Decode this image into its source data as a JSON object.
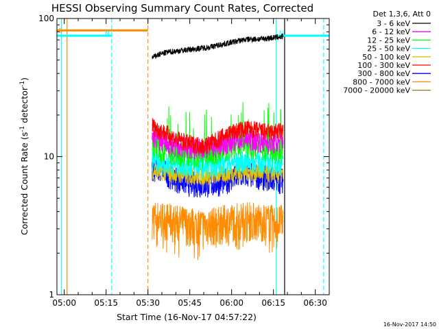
{
  "chart_data": {
    "type": "line",
    "title": "HESSI Observing Summary Count Rates, Corrected",
    "xlabel": "Start Time (16-Nov-17 04:57:22)",
    "ylabel_main": "Corrected Count Rate (s",
    "ylabel_sup1": "-1",
    "ylabel_mid": " detector",
    "ylabel_sup2": "-1",
    "ylabel_end": ")",
    "yscale": "log",
    "ylim": [
      1,
      100
    ],
    "xlim": [
      "04:57:22",
      "06:35:00"
    ],
    "xlim_min": [
      297.37,
      395.0
    ],
    "x_ticks": [
      {
        "min": 300,
        "label": "05:00"
      },
      {
        "min": 315,
        "label": "05:15"
      },
      {
        "min": 330,
        "label": "05:30"
      },
      {
        "min": 345,
        "label": "05:45"
      },
      {
        "min": 360,
        "label": "06:00"
      },
      {
        "min": 375,
        "label": "06:15"
      },
      {
        "min": 390,
        "label": "06:30"
      }
    ],
    "y_ticks": [
      {
        "value": 1,
        "label": "1"
      },
      {
        "value": 10,
        "label": "10"
      },
      {
        "value": 100,
        "label": "100"
      }
    ],
    "legend_header": "Det 1,3,6, Att 0",
    "legend_placement": "right, outside plot",
    "series": [
      {
        "name": "3 - 6 keV",
        "color": "#000000",
        "x": [
          331.5,
          334,
          337,
          340,
          343,
          346,
          349,
          352,
          355,
          358,
          361,
          364,
          367,
          370,
          373,
          376,
          378.5
        ],
        "values": [
          52,
          55,
          57,
          58,
          59,
          60,
          61,
          62,
          64,
          66,
          68,
          70,
          71,
          71,
          72,
          73,
          74
        ]
      },
      {
        "name": "6 - 12 keV",
        "color": "#ff00ff",
        "x": [
          331.5,
          335,
          340,
          345,
          350,
          355,
          360,
          365,
          370,
          375,
          378.5
        ],
        "values": [
          14,
          13,
          12,
          11.5,
          11.5,
          12,
          13,
          13.5,
          13,
          12.5,
          13
        ]
      },
      {
        "name": "12 - 25 keV",
        "color": "#00ff00",
        "x": [
          331.5,
          335,
          340,
          345,
          350,
          355,
          360,
          365,
          370,
          375,
          378.5
        ],
        "values": [
          12.5,
          11.5,
          11,
          10.5,
          10.5,
          11,
          12,
          12.5,
          12,
          11.5,
          11
        ]
      },
      {
        "name": "25 - 50 keV",
        "color": "#00ffff",
        "x": [
          331.5,
          335,
          340,
          345,
          350,
          355,
          360,
          365,
          370,
          375,
          378.5
        ],
        "values": [
          9.5,
          9,
          8.8,
          8.6,
          8.5,
          8.7,
          9,
          9.3,
          9.2,
          9,
          8.8
        ]
      },
      {
        "name": "50 - 100 keV",
        "color": "#e0c000",
        "x": [
          331.5,
          335,
          340,
          345,
          350,
          355,
          360,
          365,
          370,
          375,
          378.5
        ],
        "values": [
          8,
          7.8,
          7.5,
          7.3,
          7.2,
          7.4,
          7.6,
          7.8,
          7.7,
          7.5,
          7.4
        ]
      },
      {
        "name": "100 - 300 keV",
        "color": "#ff0000",
        "x": [
          331.5,
          333,
          336,
          340,
          345,
          350,
          354,
          358,
          362,
          366,
          370,
          374,
          378.5
        ],
        "values": [
          17,
          16,
          15,
          13.5,
          12.5,
          12,
          13,
          14.5,
          15.5,
          16,
          15.5,
          15,
          15.5
        ]
      },
      {
        "name": "300 - 800 keV",
        "color": "#0000ff",
        "x": [
          331.5,
          335,
          340,
          345,
          350,
          355,
          360,
          365,
          370,
          375,
          378.5
        ],
        "values": [
          8.5,
          8,
          7,
          6.5,
          6.3,
          6.5,
          7,
          7.5,
          7.3,
          7,
          6.8
        ]
      },
      {
        "name": "800 - 7000 keV",
        "color": "#ff8c00",
        "x": [
          331.5,
          335,
          340,
          345,
          350,
          355,
          360,
          365,
          370,
          375,
          378.5
        ],
        "values": [
          3.7,
          3.6,
          3.4,
          3.3,
          3.2,
          3.3,
          3.5,
          3.6,
          3.5,
          3.4,
          3.4
        ]
      },
      {
        "name": "7000 - 20000 keV",
        "color": "#8b8000",
        "x": [],
        "values": []
      }
    ],
    "markers": {
      "saa": {
        "label": "S",
        "color": "#ff8c00",
        "x_start": 297.37,
        "x_end": 330.0,
        "y": 82
      },
      "night_1": {
        "label": "N",
        "color": "#00ffff",
        "x_start": 297.37,
        "x_end": 317.0,
        "y": 75
      },
      "night_2": {
        "label": "N",
        "color": "#00ffff",
        "x_start": 376.0,
        "x_end": 395.0,
        "y": 75
      },
      "vlines": [
        {
          "x": 299.0,
          "color": "#00ffff",
          "style": "solid"
        },
        {
          "x": 301.0,
          "color": "#ff8c00",
          "style": "solid"
        },
        {
          "x": 317.0,
          "color": "#00ffff",
          "style": "dashed"
        },
        {
          "x": 330.0,
          "color": "#ff8c00",
          "style": "dashed"
        },
        {
          "x": 376.0,
          "color": "#00ffff",
          "style": "solid"
        },
        {
          "x": 379.0,
          "color": "#000000",
          "style": "solid"
        },
        {
          "x": 393.0,
          "color": "#00ffff",
          "style": "dashed"
        }
      ]
    },
    "grid": false
  },
  "footer": {
    "timestamp": "16-Nov-2017 14:50"
  }
}
